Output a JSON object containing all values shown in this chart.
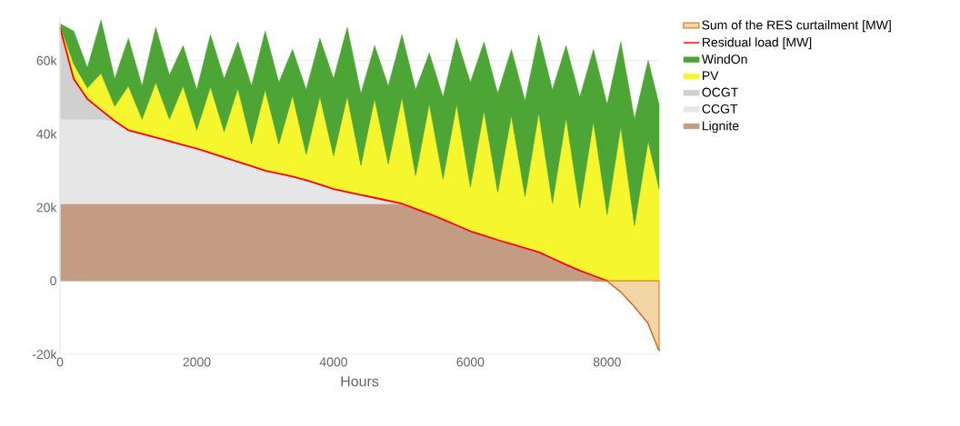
{
  "chart_data": [
    {
      "type": "area",
      "stacked": true,
      "xlabel": "Hours",
      "x": [
        0,
        200,
        400,
        600,
        800,
        1000,
        1200,
        1400,
        1600,
        1800,
        2000,
        2200,
        2400,
        2600,
        2800,
        3000,
        3200,
        3400,
        3600,
        3800,
        4000,
        4200,
        4400,
        4600,
        4800,
        5000,
        5200,
        5400,
        5600,
        5800,
        6000,
        6200,
        6400,
        6600,
        6800,
        7000,
        7200,
        7400,
        7600,
        7800,
        8000,
        8200,
        8400,
        8600,
        8760
      ],
      "xlim": [
        0,
        8760
      ],
      "xticks": [
        0,
        2000,
        4000,
        6000,
        8000
      ],
      "ylim": [
        -20000,
        72000
      ],
      "yticks": [
        {
          "value": -20000,
          "label": "-20k"
        },
        {
          "value": 0,
          "label": "0"
        },
        {
          "value": 20000,
          "label": "20k"
        },
        {
          "value": 40000,
          "label": "40k"
        },
        {
          "value": 60000,
          "label": "60k"
        }
      ],
      "grid": "y",
      "legend": "right",
      "series": [
        {
          "name": "Lignite",
          "color": "#c49c84",
          "values": [
            21000,
            21000,
            21000,
            21000,
            21000,
            21000,
            21000,
            21000,
            21000,
            21000,
            21000,
            21000,
            21000,
            21000,
            21000,
            21000,
            21000,
            21000,
            21000,
            21000,
            21000,
            21000,
            21000,
            21000,
            21000,
            21000,
            19600,
            18200,
            16700,
            15100,
            13500,
            12300,
            11100,
            10000,
            8900,
            7800,
            6100,
            4400,
            2800,
            1400,
            0,
            0,
            0,
            0,
            0
          ]
        },
        {
          "name": "CCGT",
          "color": "#e6e6e6",
          "values": [
            23000,
            23000,
            23000,
            23000,
            22500,
            20000,
            19000,
            18000,
            17000,
            16000,
            15000,
            13800,
            12600,
            11400,
            10200,
            9000,
            8200,
            7400,
            6400,
            5200,
            4000,
            3200,
            2400,
            1600,
            800,
            0,
            0,
            0,
            0,
            0,
            0,
            0,
            0,
            0,
            0,
            0,
            0,
            0,
            0,
            0,
            0,
            0,
            0,
            0,
            0
          ]
        },
        {
          "name": "OCGT",
          "color": "#d0d0d0",
          "values": [
            25000,
            11000,
            5500,
            2500,
            0,
            0,
            0,
            0,
            0,
            0,
            0,
            0,
            0,
            0,
            0,
            0,
            0,
            0,
            0,
            0,
            0,
            0,
            0,
            0,
            0,
            0,
            0,
            0,
            0,
            0,
            0,
            0,
            0,
            0,
            0,
            0,
            0,
            0,
            0,
            0,
            0,
            0,
            0,
            0,
            0
          ]
        },
        {
          "name": "PV",
          "color": "#f6f62e",
          "values": [
            500,
            4000,
            3000,
            10000,
            4000,
            12000,
            4000,
            15000,
            6000,
            16000,
            5000,
            18000,
            7000,
            20000,
            6000,
            22000,
            8000,
            22000,
            7000,
            24000,
            9000,
            26000,
            8000,
            27000,
            10000,
            29000,
            9000,
            30000,
            11000,
            33000,
            12000,
            34000,
            13000,
            35000,
            14000,
            38000,
            15000,
            40000,
            17000,
            42000,
            18000,
            42000,
            15000,
            38000,
            25000
          ]
        },
        {
          "name": "WindOn",
          "color": "#4ca535",
          "values": [
            500,
            9000,
            5500,
            14500,
            7500,
            13000,
            9000,
            15000,
            12000,
            11000,
            11000,
            14200,
            14400,
            12600,
            15800,
            16000,
            16800,
            12600,
            17600,
            15800,
            21000,
            18800,
            19600,
            14400,
            21200,
            17000,
            23400,
            13800,
            22300,
            17900,
            28500,
            18700,
            26900,
            18000,
            26100,
            21200,
            30900,
            19600,
            30200,
            19600,
            30000,
            23000,
            29000,
            22000,
            23000
          ]
        },
        {
          "name": "Residual load [MW]",
          "type": "line",
          "color": "#ff0000",
          "values": [
            69000,
            55000,
            49500,
            46500,
            43500,
            41000,
            40000,
            39000,
            38000,
            37000,
            36000,
            34800,
            33600,
            32400,
            31200,
            30000,
            29200,
            28400,
            27400,
            26200,
            25000,
            24200,
            23400,
            22600,
            21800,
            21000,
            19600,
            18200,
            16700,
            15100,
            13500,
            12300,
            11100,
            10000,
            8900,
            7800,
            6100,
            4400,
            2800,
            1400,
            0,
            -3000,
            -7000,
            -11500,
            -19000
          ]
        }
      ]
    },
    {
      "type": "area",
      "legend": "right",
      "x": [
        7800,
        8000,
        8200,
        8400,
        8600,
        8760
      ],
      "xlim": [
        0,
        8760
      ],
      "ylim": [
        -20000,
        72000
      ],
      "series": [
        {
          "name": "Sum of the RES curtailment [MW]",
          "color": "#f2d6a6",
          "values": [
            0,
            0,
            -3000,
            -7000,
            -11500,
            -19000
          ]
        }
      ]
    }
  ]
}
